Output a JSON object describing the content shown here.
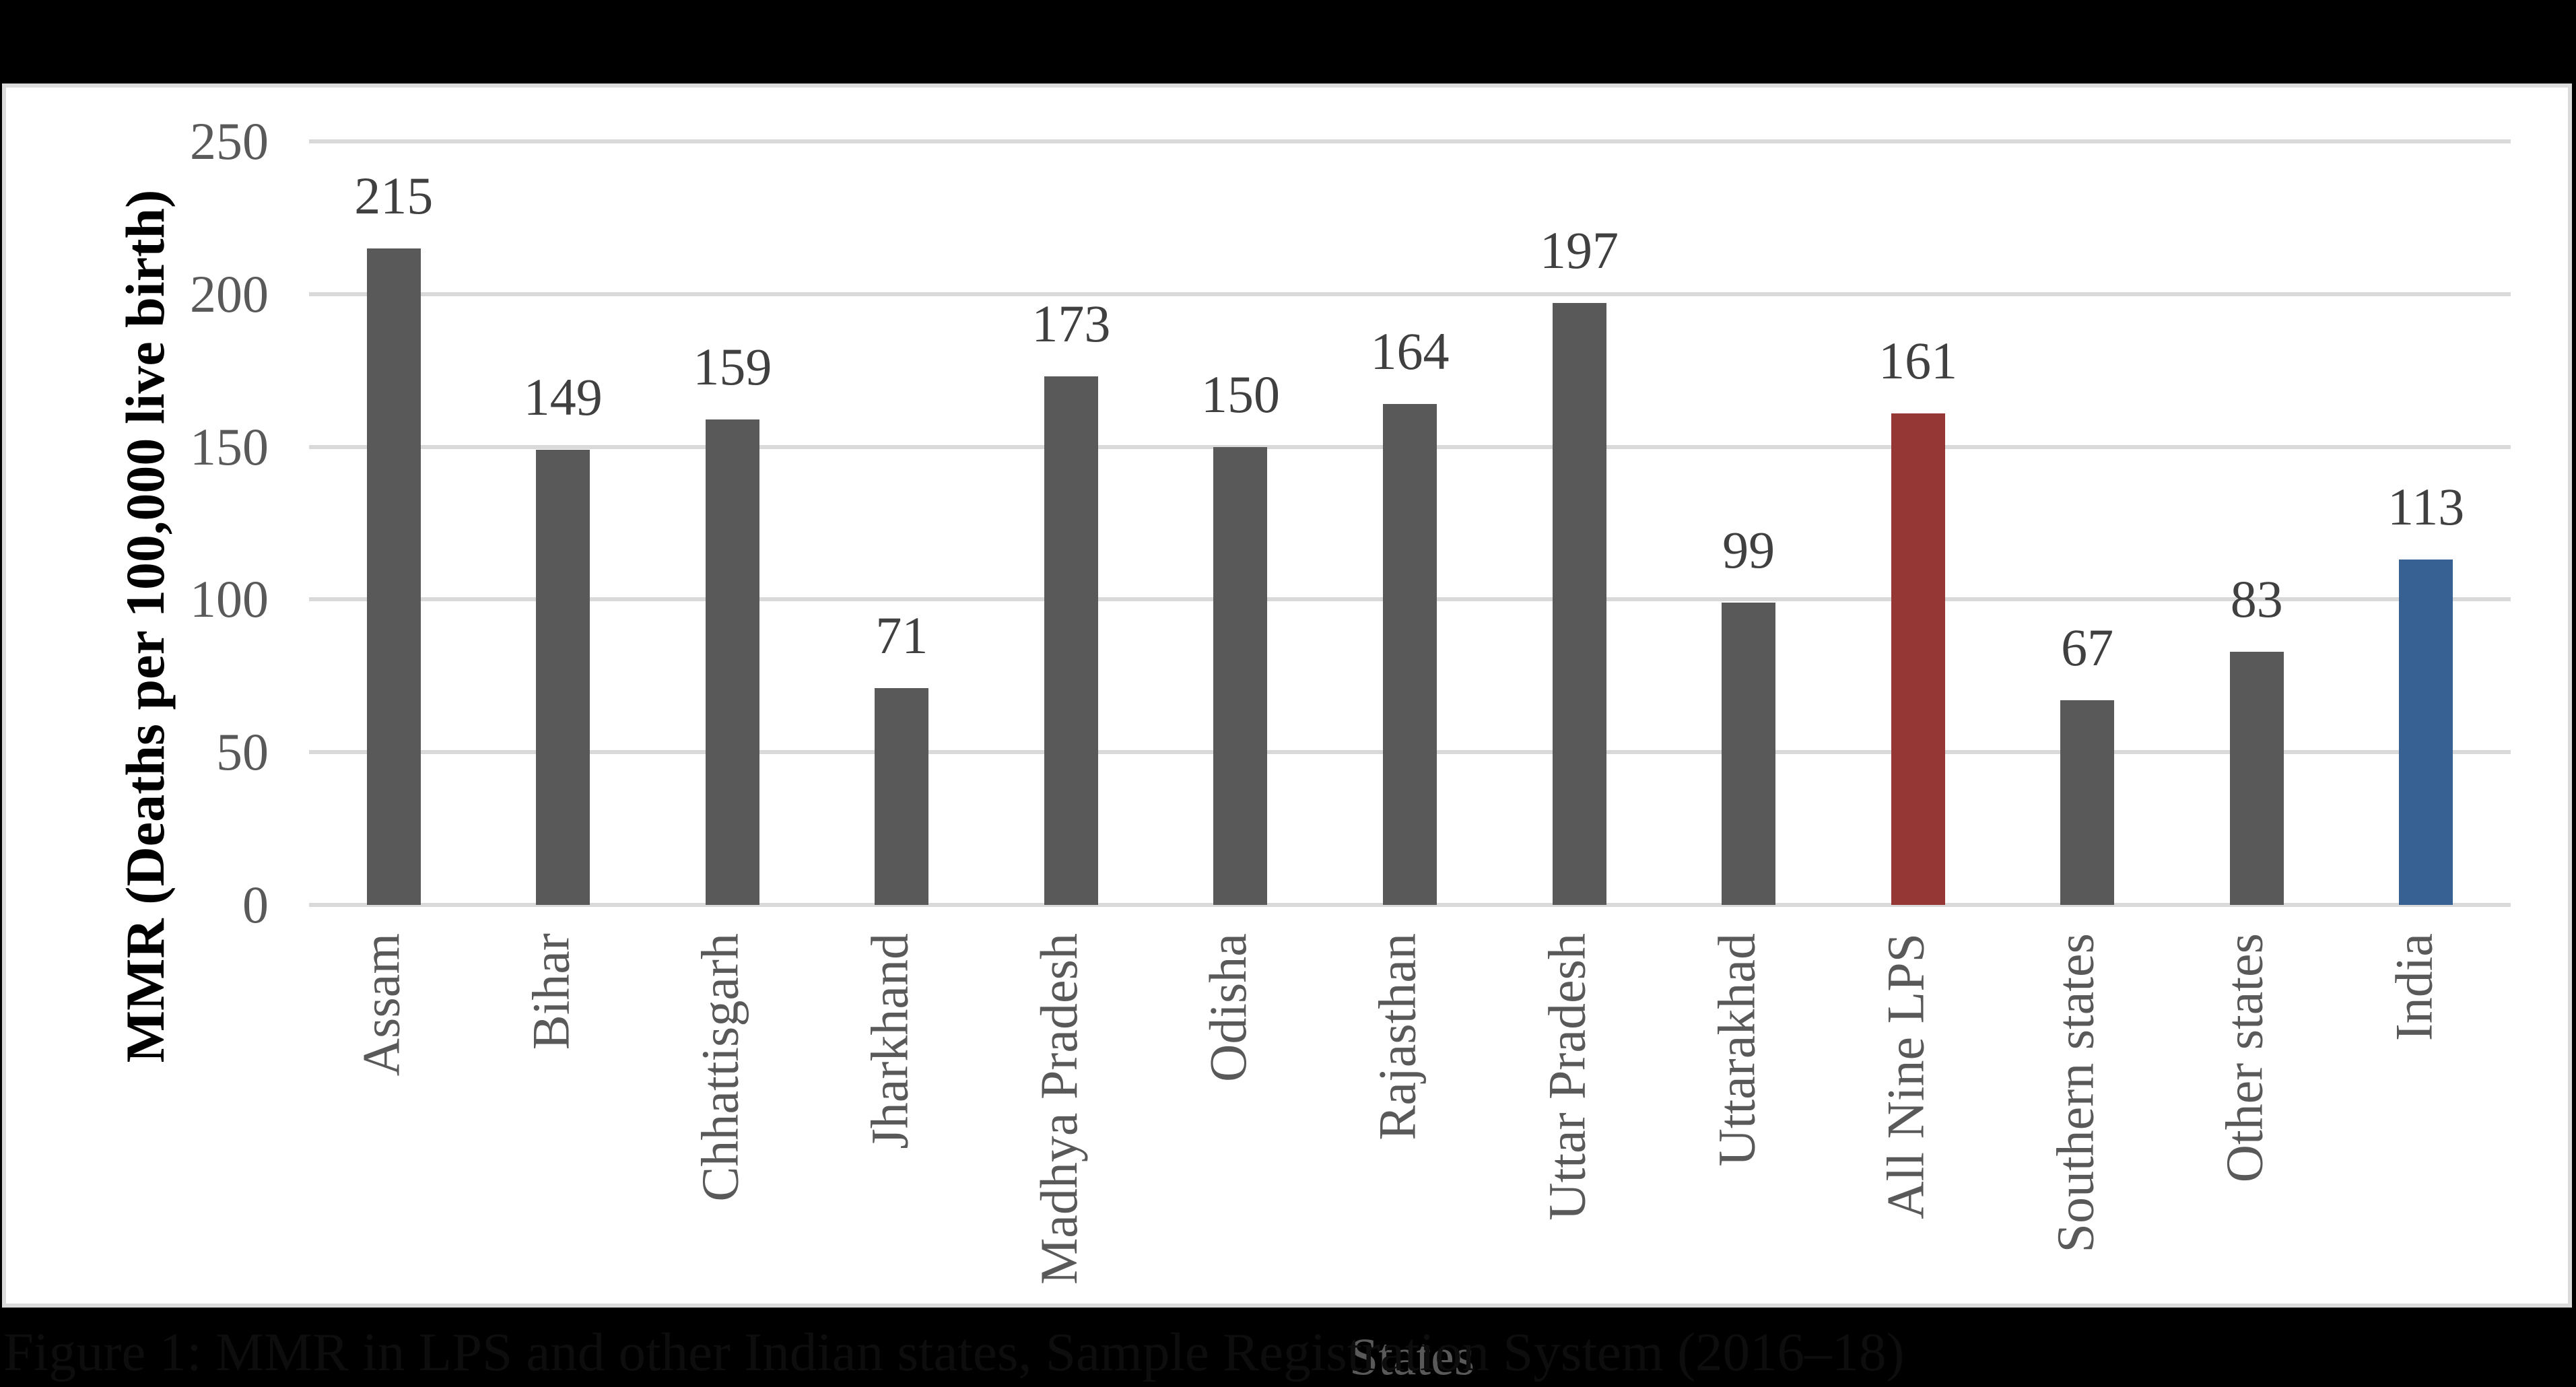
{
  "caption": "Figure 1: MMR in LPS and other Indian states, Sample Registration System (2016–18)",
  "chart_data": {
    "type": "bar",
    "title": "",
    "xlabel": "States",
    "ylabel": "MMR (Deaths per 100,000 live birth)",
    "ylim": [
      0,
      250
    ],
    "ytick_step": 50,
    "grid": true,
    "legend": false,
    "categories": [
      "Assam",
      "Bihar",
      "Chhattisgarh",
      "Jharkhand",
      "Madhya Pradesh",
      "Odisha",
      "Rajasthan",
      "Uttar Pradesh",
      "Uttarakhad",
      "All Nine LPS",
      "Southern states",
      "Other states",
      "India"
    ],
    "values": [
      215,
      149,
      159,
      71,
      173,
      150,
      164,
      197,
      99,
      161,
      67,
      83,
      113
    ],
    "bar_colors": [
      "#595959",
      "#595959",
      "#595959",
      "#595959",
      "#595959",
      "#595959",
      "#595959",
      "#595959",
      "#595959",
      "#953735",
      "#595959",
      "#595959",
      "#376192"
    ],
    "colors": {
      "default_bar": "#595959",
      "lps_highlight_bar": "#953735",
      "india_highlight_bar": "#376192",
      "gridline": "#D9D9D9",
      "tick_text": "#595959",
      "data_label_text": "#404040",
      "axis_title_text": "#000000"
    }
  }
}
